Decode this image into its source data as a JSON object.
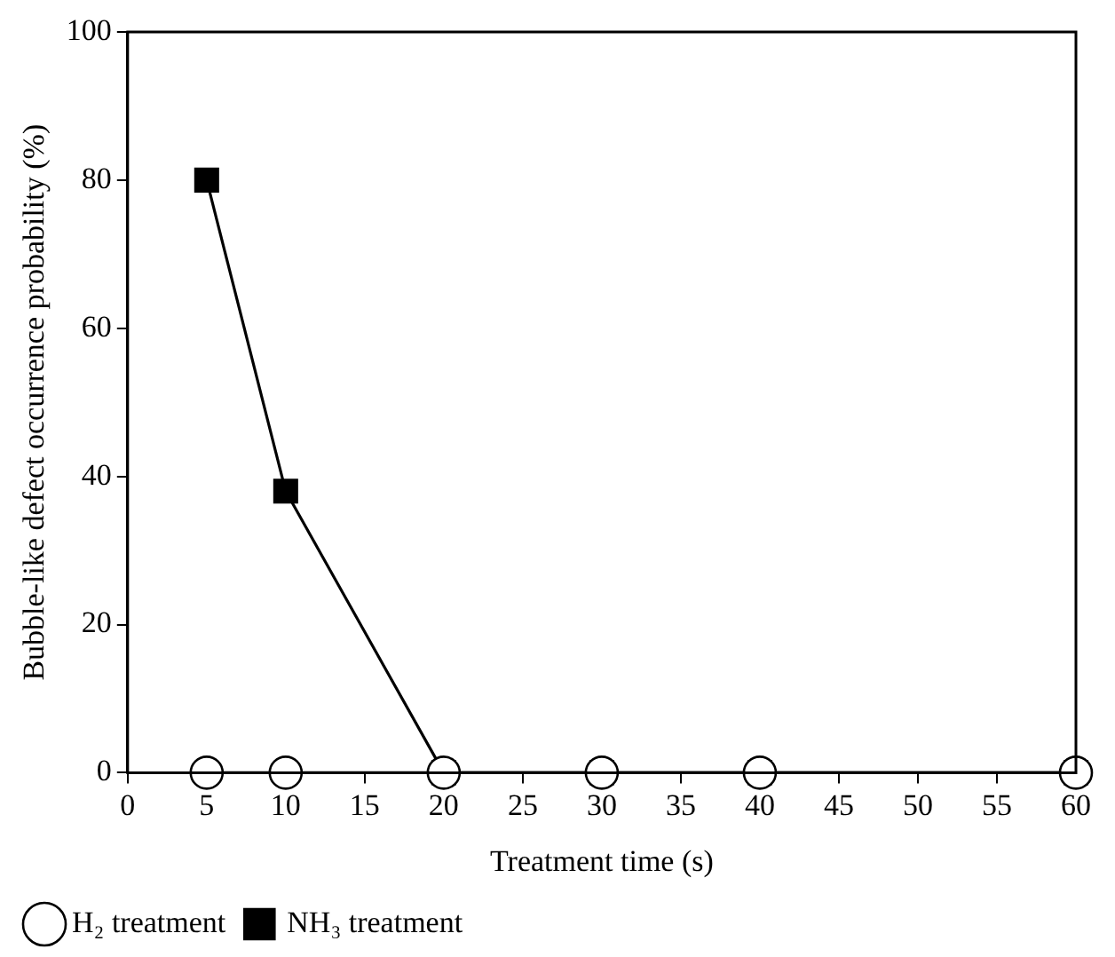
{
  "chart_data": {
    "type": "line",
    "xlabel": "Treatment time (s)",
    "ylabel": "Bubble-like defect occurrence probability (%)",
    "xlim": [
      0,
      60
    ],
    "xticks": [
      0,
      5,
      10,
      15,
      20,
      25,
      30,
      35,
      40,
      45,
      50,
      55,
      60
    ],
    "ylim": [
      0,
      100
    ],
    "yticks": [
      0,
      20,
      40,
      60,
      80,
      100
    ],
    "grid": false,
    "legend": "bottom left",
    "line_style": "solid",
    "series": [
      {
        "name": "NH₃ treatment",
        "color": "#000000",
        "marker": "square",
        "x": [
          5,
          10,
          20,
          30,
          40,
          60
        ],
        "values": [
          80,
          38,
          0,
          0,
          0,
          0
        ]
      },
      {
        "name": "H₂ treatment",
        "color": "#000000",
        "marker": "circle",
        "x": [
          5,
          10,
          20,
          30,
          40,
          60
        ],
        "values": [
          0,
          0,
          0,
          0,
          0,
          0
        ]
      }
    ]
  }
}
